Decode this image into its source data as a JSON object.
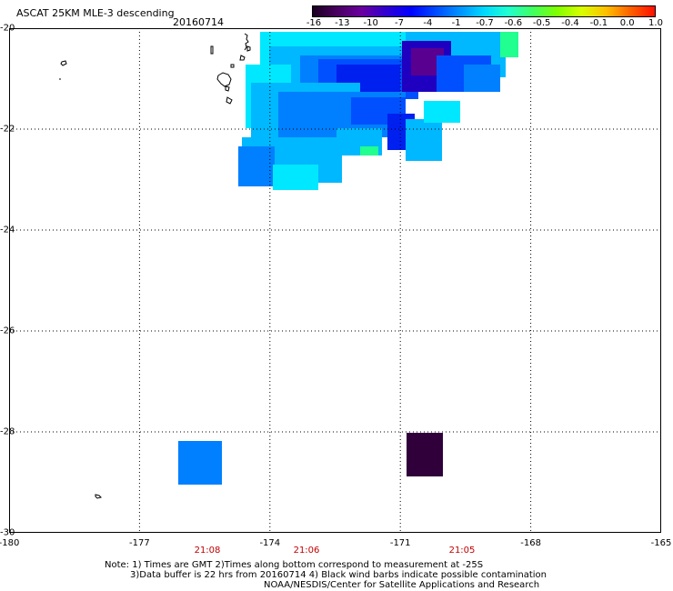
{
  "header": {
    "title": "ASCAT 25KM MLE-3 descending",
    "date": "20160714"
  },
  "colorbar": {
    "labels": [
      "-16",
      "-13",
      "-10",
      "-7",
      "-4",
      "-1",
      "-0.7",
      "-0.6",
      "-0.5",
      "-0.4",
      "-0.1",
      "0.0",
      "1.0"
    ],
    "colors": [
      "#1a0020",
      "#4a0060",
      "#6a00a0",
      "#3000d0",
      "#0000ff",
      "#0048ff",
      "#0090ff",
      "#00d8ff",
      "#20ffd0",
      "#40ff60",
      "#80ff00",
      "#d8ff00",
      "#ffc000",
      "#ff6000",
      "#ff1000"
    ]
  },
  "axes": {
    "lat_labels": [
      "-20",
      "-22",
      "-24",
      "-26",
      "-28",
      "-30"
    ],
    "lon_labels": [
      "-180",
      "-177",
      "-174",
      "-171",
      "-168",
      "-165"
    ],
    "lat_range": [
      -20,
      -30
    ],
    "lon_range": [
      -180,
      -165
    ],
    "grid": true
  },
  "times": [
    "21:08",
    "21:06",
    "21:05"
  ],
  "notes": {
    "line1": "Note: 1) Times are GMT 2)Times along bottom correspond to measurement at -25S",
    "line2": "3)Data buffer is 22 hrs from 20160714 4) Black wind barbs indicate possible contamination",
    "line3": "NOAA/NESDIS/Center for Satellite Applications and Research"
  },
  "swath_colors": {
    "cyan": "#00e8ff",
    "light_blue": "#00b8ff",
    "mid_blue": "#0080ff",
    "blue": "#0050ff",
    "deep_blue": "#0020f0",
    "indigo": "#2000c0",
    "purple": "#5a0090",
    "dark": "#30003a",
    "green": "#20ff90"
  }
}
